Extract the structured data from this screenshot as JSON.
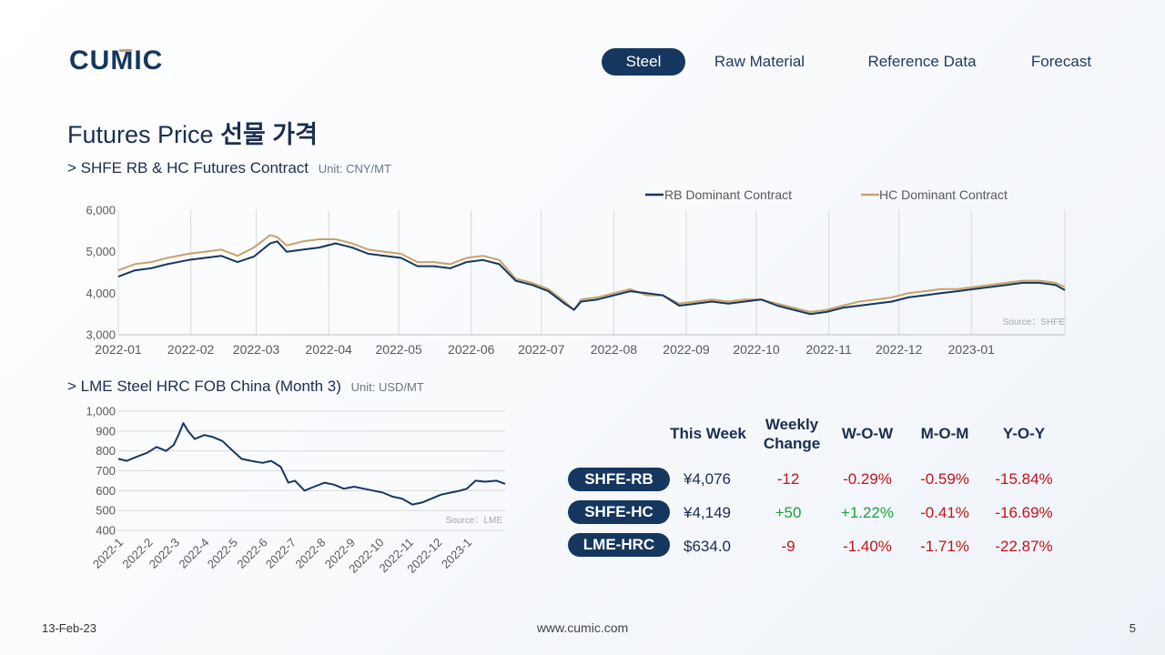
{
  "brand": {
    "name": "CUMIC",
    "color": "#15375f",
    "accent": "#c8a26a"
  },
  "nav": {
    "items": [
      "Steel",
      "Raw Material",
      "Reference Data",
      "Forecast"
    ],
    "active": "Steel"
  },
  "page": {
    "title_en": "Futures Price",
    "title_ko": "선물 가격"
  },
  "footer": {
    "date": "13-Feb-23",
    "website": "www.cumic.com",
    "page": "5"
  },
  "colors": {
    "rb": "#15375f",
    "hc": "#c8a26a",
    "negative": "#c0131d",
    "positive": "#19a33e"
  },
  "chart_data": [
    {
      "type": "line",
      "title": "> SHFE RB & HC Futures Contract",
      "unit": "Unit: CNY/MT",
      "source": "Source：SHFE",
      "legend": "top-right",
      "grid": "vertical",
      "ylim": [
        3000,
        6000
      ],
      "yticks": [
        3000,
        4000,
        5000,
        6000
      ],
      "ytick_labels": [
        "3,000",
        "4,000",
        "5,000",
        "6,000"
      ],
      "xlim": [
        "2022-01-01",
        "2023-02-10"
      ],
      "xtick_labels": [
        "2022-01",
        "2022-02",
        "2022-03",
        "2022-04",
        "2022-05",
        "2022-06",
        "2022-07",
        "2022-08",
        "2022-09",
        "2022-10",
        "2022-11",
        "2022-12",
        "2023-01"
      ],
      "series": [
        {
          "name": "RB Dominant Contract",
          "color": "#15375f",
          "x": [
            "2022-01-01",
            "2022-01-08",
            "2022-01-15",
            "2022-01-22",
            "2022-01-31",
            "2022-02-07",
            "2022-02-14",
            "2022-02-21",
            "2022-02-28",
            "2022-03-07",
            "2022-03-10",
            "2022-03-14",
            "2022-03-21",
            "2022-03-28",
            "2022-04-04",
            "2022-04-11",
            "2022-04-18",
            "2022-04-25",
            "2022-05-02",
            "2022-05-09",
            "2022-05-16",
            "2022-05-23",
            "2022-05-30",
            "2022-06-06",
            "2022-06-13",
            "2022-06-20",
            "2022-06-27",
            "2022-07-04",
            "2022-07-11",
            "2022-07-15",
            "2022-07-18",
            "2022-07-25",
            "2022-08-01",
            "2022-08-08",
            "2022-08-15",
            "2022-08-22",
            "2022-08-29",
            "2022-09-05",
            "2022-09-12",
            "2022-09-19",
            "2022-09-26",
            "2022-10-03",
            "2022-10-10",
            "2022-10-17",
            "2022-10-24",
            "2022-10-31",
            "2022-11-07",
            "2022-11-14",
            "2022-11-21",
            "2022-11-28",
            "2022-12-05",
            "2022-12-12",
            "2022-12-19",
            "2022-12-26",
            "2023-01-02",
            "2023-01-09",
            "2023-01-16",
            "2023-01-23",
            "2023-01-30",
            "2023-02-06",
            "2023-02-10"
          ],
          "y": [
            4400,
            4550,
            4600,
            4700,
            4800,
            4850,
            4900,
            4750,
            4880,
            5200,
            5250,
            5000,
            5050,
            5100,
            5200,
            5100,
            4950,
            4900,
            4850,
            4650,
            4650,
            4600,
            4750,
            4800,
            4700,
            4300,
            4200,
            4050,
            3750,
            3600,
            3800,
            3850,
            3950,
            4050,
            4000,
            3950,
            3700,
            3750,
            3800,
            3750,
            3800,
            3850,
            3700,
            3600,
            3500,
            3550,
            3650,
            3700,
            3750,
            3800,
            3900,
            3950,
            4000,
            4050,
            4100,
            4150,
            4200,
            4250,
            4250,
            4200,
            4076
          ]
        },
        {
          "name": "HC Dominant Contract",
          "color": "#c8a26a",
          "x": [
            "2022-01-01",
            "2022-01-08",
            "2022-01-15",
            "2022-01-22",
            "2022-01-31",
            "2022-02-07",
            "2022-02-14",
            "2022-02-21",
            "2022-02-28",
            "2022-03-07",
            "2022-03-10",
            "2022-03-14",
            "2022-03-21",
            "2022-03-28",
            "2022-04-04",
            "2022-04-11",
            "2022-04-18",
            "2022-04-25",
            "2022-05-02",
            "2022-05-09",
            "2022-05-16",
            "2022-05-23",
            "2022-05-30",
            "2022-06-06",
            "2022-06-13",
            "2022-06-20",
            "2022-06-27",
            "2022-07-04",
            "2022-07-11",
            "2022-07-15",
            "2022-07-18",
            "2022-07-25",
            "2022-08-01",
            "2022-08-08",
            "2022-08-15",
            "2022-08-22",
            "2022-08-29",
            "2022-09-05",
            "2022-09-12",
            "2022-09-19",
            "2022-09-26",
            "2022-10-03",
            "2022-10-10",
            "2022-10-17",
            "2022-10-24",
            "2022-10-31",
            "2022-11-07",
            "2022-11-14",
            "2022-11-21",
            "2022-11-28",
            "2022-12-05",
            "2022-12-12",
            "2022-12-19",
            "2022-12-26",
            "2023-01-02",
            "2023-01-09",
            "2023-01-16",
            "2023-01-23",
            "2023-01-30",
            "2023-02-06",
            "2023-02-10"
          ],
          "y": [
            4550,
            4700,
            4750,
            4850,
            4950,
            5000,
            5050,
            4900,
            5100,
            5400,
            5350,
            5150,
            5250,
            5300,
            5300,
            5200,
            5050,
            5000,
            4950,
            4750,
            4750,
            4700,
            4850,
            4900,
            4800,
            4350,
            4250,
            4100,
            3800,
            3600,
            3850,
            3900,
            4000,
            4100,
            3950,
            3950,
            3750,
            3800,
            3850,
            3800,
            3850,
            3850,
            3750,
            3650,
            3550,
            3600,
            3700,
            3800,
            3850,
            3900,
            4000,
            4050,
            4100,
            4100,
            4150,
            4200,
            4250,
            4300,
            4300,
            4250,
            4149
          ]
        }
      ]
    },
    {
      "type": "line",
      "title": "> LME Steel HRC FOB China (Month 3)",
      "unit": "Unit: USD/MT",
      "source": "Source：LME",
      "grid": "horizontal",
      "ylim": [
        400,
        1000
      ],
      "yticks": [
        400,
        500,
        600,
        700,
        800,
        900,
        1000
      ],
      "ytick_labels": [
        "400",
        "500",
        "600",
        "700",
        "800",
        "900",
        "1,000"
      ],
      "xlim": [
        "2022-01-01",
        "2023-02-10"
      ],
      "xtick_labels": [
        "2022-1",
        "2022-2",
        "2022-3",
        "2022-4",
        "2022-5",
        "2022-6",
        "2022-7",
        "2022-8",
        "2022-9",
        "2022-10",
        "2022-11",
        "2022-12",
        "2023-1"
      ],
      "series": [
        {
          "name": "LME HRC",
          "color": "#15375f",
          "x": [
            "2022-01-01",
            "2022-01-10",
            "2022-01-20",
            "2022-01-31",
            "2022-02-10",
            "2022-02-20",
            "2022-02-28",
            "2022-03-05",
            "2022-03-10",
            "2022-03-15",
            "2022-03-22",
            "2022-04-01",
            "2022-04-10",
            "2022-04-20",
            "2022-05-01",
            "2022-05-10",
            "2022-05-20",
            "2022-06-01",
            "2022-06-10",
            "2022-06-20",
            "2022-06-28",
            "2022-07-05",
            "2022-07-15",
            "2022-07-25",
            "2022-08-05",
            "2022-08-15",
            "2022-08-25",
            "2022-09-05",
            "2022-09-15",
            "2022-09-25",
            "2022-10-05",
            "2022-10-15",
            "2022-10-25",
            "2022-11-05",
            "2022-11-15",
            "2022-11-25",
            "2022-12-05",
            "2022-12-15",
            "2022-12-25",
            "2023-01-01",
            "2023-01-10",
            "2023-01-20",
            "2023-02-01",
            "2023-02-10"
          ],
          "y": [
            760,
            750,
            770,
            790,
            820,
            800,
            830,
            880,
            940,
            900,
            860,
            880,
            870,
            850,
            800,
            760,
            750,
            740,
            750,
            720,
            640,
            650,
            600,
            620,
            640,
            630,
            610,
            620,
            610,
            600,
            590,
            570,
            560,
            530,
            540,
            560,
            580,
            590,
            600,
            610,
            650,
            645,
            650,
            634
          ]
        }
      ]
    }
  ],
  "table": {
    "headers": {
      "this_week": "This Week",
      "weekly_change_1": "Weekly",
      "weekly_change_2": "Change",
      "wow": "W-O-W",
      "mom": "M-O-M",
      "yoy": "Y-O-Y"
    },
    "rows": [
      {
        "name": "SHFE-RB",
        "price": "¥4,076",
        "change": "-12",
        "wow": "-0.29%",
        "mom": "-0.59%",
        "yoy": "-15.84%"
      },
      {
        "name": "SHFE-HC",
        "price": "¥4,149",
        "change": "+50",
        "wow": "+1.22%",
        "mom": "-0.41%",
        "yoy": "-16.69%"
      },
      {
        "name": "LME-HRC",
        "price": "$634.0",
        "change": "-9",
        "wow": "-1.40%",
        "mom": "-1.71%",
        "yoy": "-22.87%"
      }
    ]
  }
}
